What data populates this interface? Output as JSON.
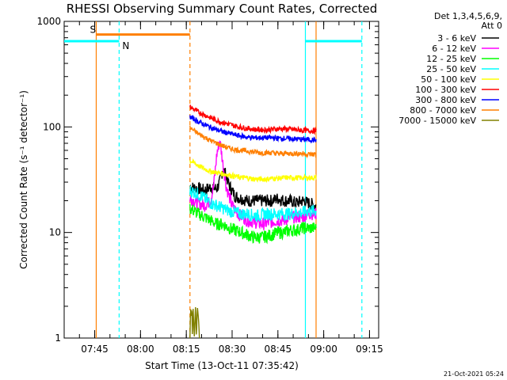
{
  "chart_data": {
    "type": "line",
    "title": "RHESSI Observing Summary Count Rates, Corrected",
    "xlabel": "Start Time (13-Oct-11 07:35:42)",
    "ylabel": "Corrected Count Rate (s⁻¹ detector⁻¹)",
    "y_scale": "log",
    "ylim": [
      1,
      1000
    ],
    "xlim_minutes_after_0735": [
      0,
      103
    ],
    "x_tick_labels": [
      "07:45",
      "08:00",
      "08:15",
      "08:30",
      "08:45",
      "09:00",
      "09:15"
    ],
    "x_tick_minutes_after_0735": [
      10,
      25,
      40,
      55,
      70,
      85,
      100
    ],
    "y_tick_labels": [
      "1",
      "10",
      "100",
      "1000"
    ],
    "y_tick_values": [
      1,
      10,
      100,
      1000
    ],
    "legend_header": [
      "Det 1,3,4,5,6,9,",
      "Att 0"
    ],
    "legend_placement": "top-right (outside plot)",
    "footer": "21-Oct-2021 05:24",
    "annotations": [
      {
        "label": "S",
        "color": "#ff7f00",
        "x_min": 10.5,
        "line_style": "solid"
      },
      {
        "label": "N",
        "color": "#00ffff",
        "x_min": 18,
        "line_style": "dashed"
      }
    ],
    "bars": [
      {
        "name": "saa",
        "color": "#ff7f00",
        "from_min": 10.5,
        "to_min": 41.2,
        "y": 750
      },
      {
        "name": "night-1",
        "color": "#00ffff",
        "from_min": 0,
        "to_min": 18,
        "y": 650
      },
      {
        "name": "night-2",
        "color": "#00ffff",
        "from_min": 79,
        "to_min": 97.5,
        "y": 650
      }
    ],
    "vertical_lines": [
      {
        "x_min": 10.5,
        "color": "#ff7f00",
        "style": "solid"
      },
      {
        "x_min": 18,
        "color": "#00ffff",
        "style": "dashed"
      },
      {
        "x_min": 41.2,
        "color": "#ff7f00",
        "style": "dashed"
      },
      {
        "x_min": 79,
        "color": "#00ffff",
        "style": "solid"
      },
      {
        "x_min": 82.5,
        "color": "#ff7f00",
        "style": "solid"
      },
      {
        "x_min": 97.5,
        "color": "#00ffff",
        "style": "dashed"
      }
    ],
    "data_window_minutes": [
      41.2,
      82.5
    ],
    "series": [
      {
        "name": "3 - 6 keV",
        "color": "#000000",
        "x": [
          41.2,
          44,
          46,
          48,
          50,
          51,
          52,
          53,
          54,
          55,
          56,
          58,
          60,
          62,
          65,
          68,
          70,
          72,
          74,
          76,
          78,
          80,
          82.5
        ],
        "y": [
          27,
          26,
          25,
          27,
          26,
          30,
          40,
          35,
          28,
          25,
          22,
          21,
          20,
          20,
          20,
          20,
          21,
          20,
          20,
          19,
          20,
          19,
          18
        ]
      },
      {
        "name": "6 - 12 keV",
        "color": "#ff00ff",
        "x": [
          41.2,
          44,
          46,
          48,
          49,
          50,
          51,
          52,
          53,
          54,
          55,
          57,
          60,
          65,
          70,
          72,
          74,
          76,
          78,
          80,
          82.5
        ],
        "y": [
          21,
          19,
          18,
          20,
          28,
          55,
          75,
          45,
          28,
          22,
          18,
          15,
          13,
          12,
          13,
          13,
          14,
          14,
          14,
          15,
          15
        ]
      },
      {
        "name": "12 - 25 keV",
        "color": "#00ff00",
        "x": [
          41.2,
          44,
          46,
          48,
          50,
          52,
          54,
          56,
          58,
          60,
          62,
          65,
          68,
          70,
          72,
          74,
          76,
          78,
          80,
          82.5
        ],
        "y": [
          17,
          15,
          14,
          13,
          12,
          12,
          11,
          10.5,
          10,
          9.5,
          9,
          9,
          9.5,
          10,
          10,
          10.5,
          10.5,
          11,
          11,
          11
        ]
      },
      {
        "name": "25 - 50 keV",
        "color": "#00ffff",
        "x": [
          41.2,
          44,
          46,
          48,
          50,
          52,
          54,
          56,
          58,
          60,
          62,
          64,
          66,
          68,
          70,
          72,
          74,
          76,
          78,
          80,
          82.5
        ],
        "y": [
          25,
          23,
          21,
          19,
          18,
          17,
          16,
          15.5,
          15,
          15,
          14.5,
          14.5,
          15,
          15,
          15,
          15,
          15,
          15.5,
          15.5,
          16,
          16
        ]
      },
      {
        "name": "50 - 100 keV",
        "color": "#ffff00",
        "x": [
          41.2,
          44,
          46,
          48,
          50,
          52,
          54,
          56,
          58,
          60,
          62,
          64,
          66,
          68,
          70,
          72,
          74,
          76,
          78,
          80,
          82.5
        ],
        "y": [
          48,
          43,
          40,
          38,
          37,
          36,
          35,
          34,
          33,
          33,
          32,
          32,
          32,
          32.5,
          32.5,
          33,
          33,
          33,
          33,
          33,
          33
        ]
      },
      {
        "name": "100 - 300 keV",
        "color": "#ff0000",
        "x": [
          41.2,
          44,
          46,
          48,
          50,
          52,
          54,
          56,
          58,
          60,
          62,
          64,
          66,
          68,
          70,
          72,
          74,
          76,
          78,
          80,
          82.5
        ],
        "y": [
          155,
          138,
          130,
          122,
          115,
          110,
          106,
          102,
          99,
          97,
          95,
          94,
          94,
          95,
          96,
          96,
          95,
          94,
          93,
          92,
          92
        ]
      },
      {
        "name": "300 - 800 keV",
        "color": "#0000ff",
        "x": [
          41.2,
          44,
          46,
          48,
          50,
          52,
          54,
          56,
          58,
          60,
          62,
          64,
          66,
          68,
          70,
          72,
          74,
          76,
          78,
          80,
          82.5
        ],
        "y": [
          125,
          112,
          105,
          99,
          94,
          90,
          87,
          84,
          82,
          80,
          79,
          79,
          79,
          79,
          78,
          78,
          77,
          77,
          76,
          76,
          75
        ]
      },
      {
        "name": "800 - 7000 keV",
        "color": "#ff7f00",
        "x": [
          41.2,
          44,
          46,
          48,
          50,
          52,
          54,
          56,
          58,
          60,
          62,
          64,
          66,
          68,
          70,
          72,
          74,
          76,
          78,
          80,
          82.5
        ],
        "y": [
          98,
          86,
          80,
          74,
          70,
          66,
          63,
          61,
          60,
          59,
          58,
          57,
          57,
          57,
          56,
          56,
          56,
          56,
          56,
          55,
          55
        ]
      },
      {
        "name": "7000 - 15000 keV",
        "color": "#808000",
        "x": [
          41.2,
          41.4,
          41.6,
          41.8,
          42.0,
          42.2,
          42.6,
          43.0,
          43.3,
          43.6,
          44.0,
          44.3
        ],
        "y": [
          1,
          2,
          1.6,
          2,
          1,
          2,
          1,
          2,
          1,
          2,
          1.5,
          1
        ]
      }
    ]
  }
}
